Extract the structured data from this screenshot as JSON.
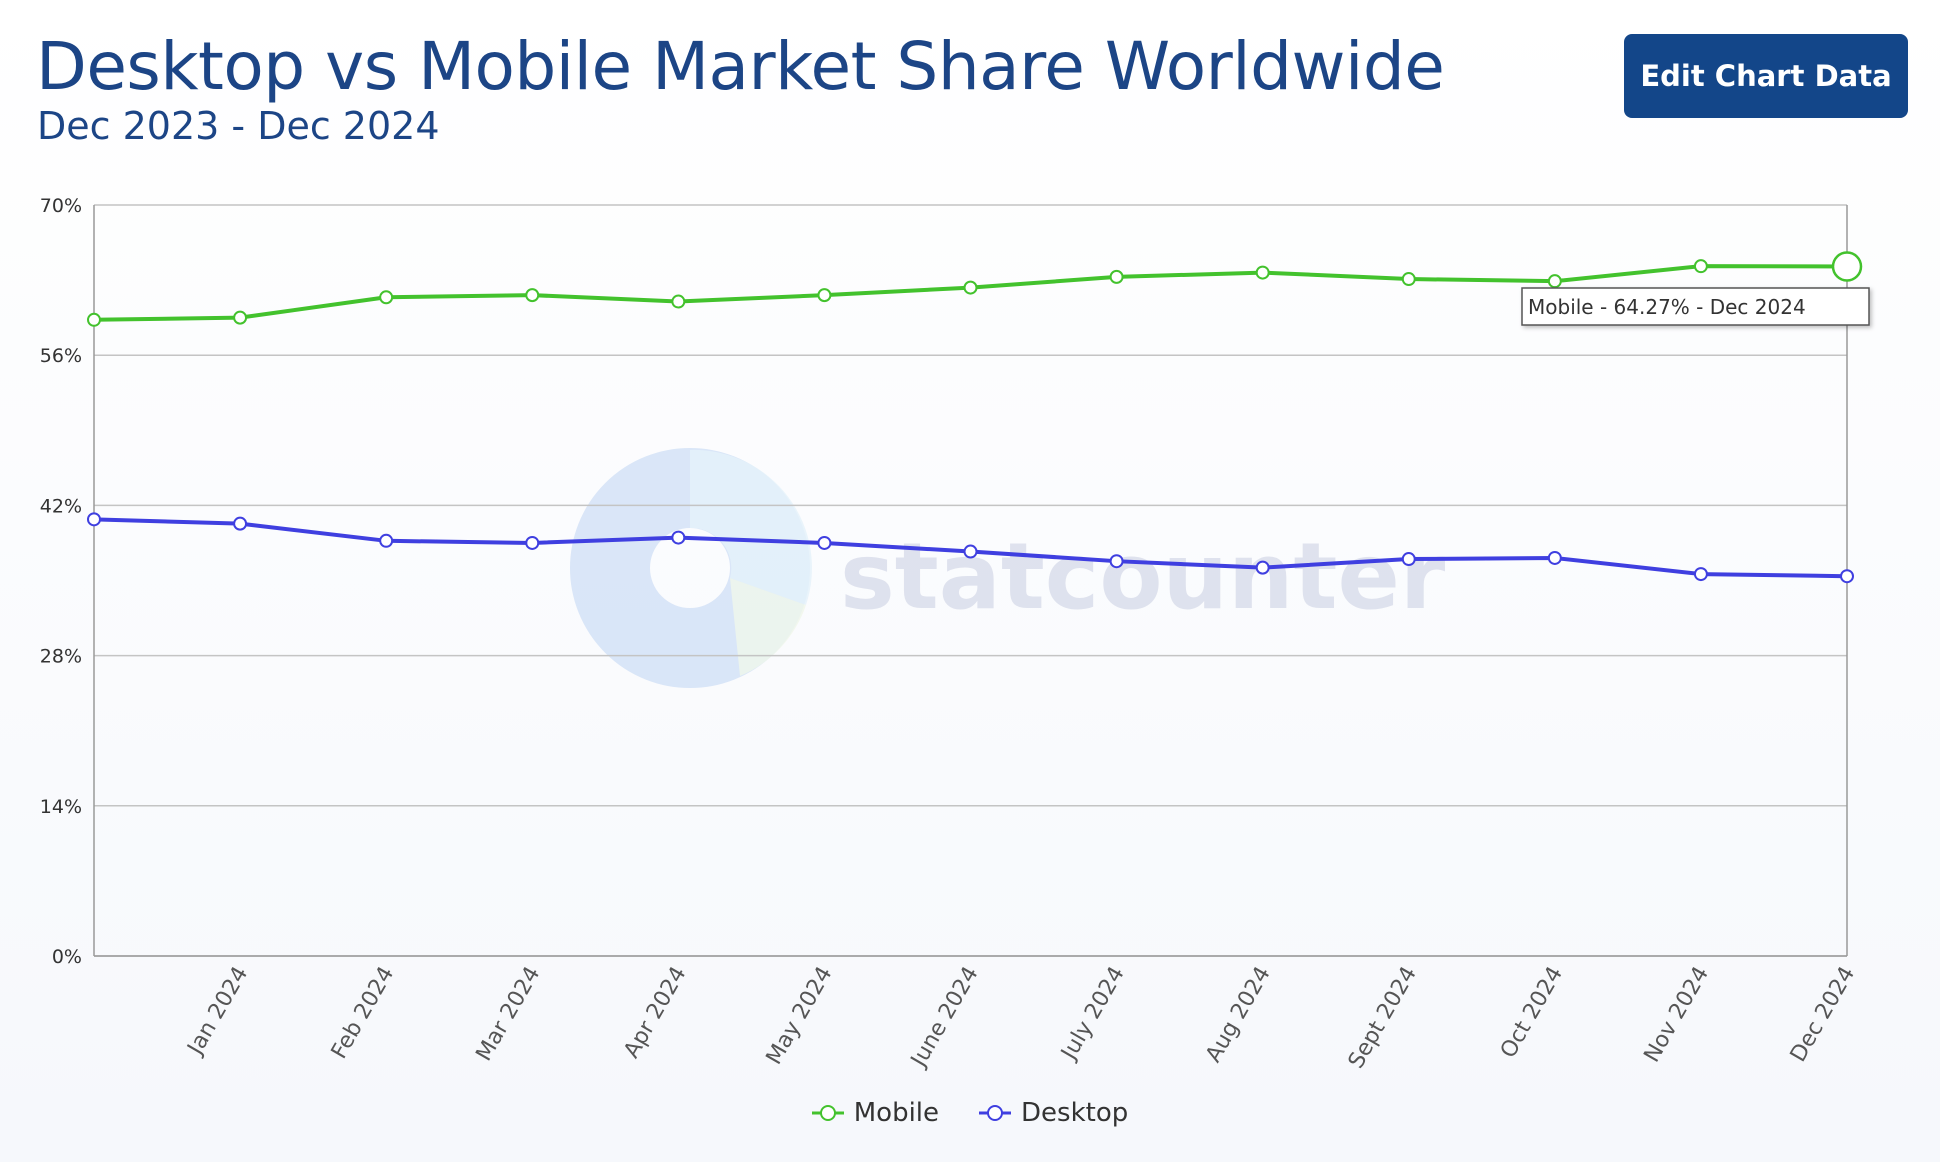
{
  "header": {
    "title": "Desktop vs Mobile Market Share Worldwide",
    "subtitle": "Dec 2023 - Dec 2024",
    "edit_button_label": "Edit Chart Data"
  },
  "watermark": "statcounter",
  "tooltip": "Mobile - 64.27% - Dec 2024",
  "colors": {
    "mobile": "#43c22d",
    "desktop": "#3f3fe0",
    "button": "#134689",
    "title": "#1c4586"
  },
  "chart_data": {
    "type": "line",
    "categories": [
      "",
      "Jan 2024",
      "Feb 2024",
      "Mar 2024",
      "Apr 2024",
      "May 2024",
      "June 2024",
      "July 2024",
      "Aug 2024",
      "Sept 2024",
      "Oct 2024",
      "Nov 2024",
      "Dec 2024"
    ],
    "series": [
      {
        "name": "Mobile",
        "color": "#43c22d",
        "values": [
          59.3,
          59.5,
          61.4,
          61.6,
          61.0,
          61.6,
          62.3,
          63.3,
          63.7,
          63.1,
          62.9,
          64.3,
          64.27
        ]
      },
      {
        "name": "Desktop",
        "color": "#3f3fe0",
        "values": [
          40.7,
          40.3,
          38.7,
          38.5,
          39.0,
          38.5,
          37.7,
          36.8,
          36.2,
          37.0,
          37.1,
          35.6,
          35.4
        ]
      }
    ],
    "yticks": [
      "0%",
      "14%",
      "28%",
      "42%",
      "56%",
      "70%"
    ],
    "ylim": [
      0,
      70
    ],
    "grid": true,
    "legend": "bottom-center",
    "highlight": {
      "series": "Mobile",
      "category": "Dec 2024"
    }
  }
}
